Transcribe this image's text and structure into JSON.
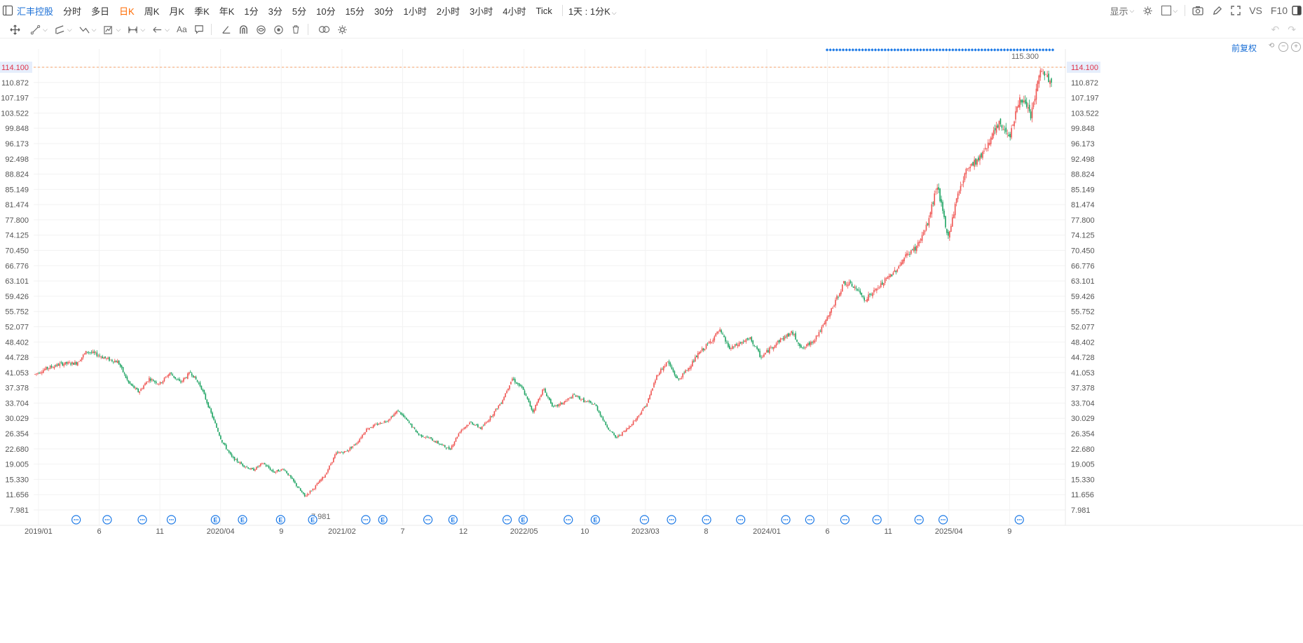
{
  "toolbar": {
    "stock_name": "汇丰控股",
    "periods": [
      "分时",
      "多日",
      "日K",
      "周K",
      "月K",
      "季K",
      "年K",
      "1分",
      "3分",
      "5分",
      "10分",
      "15分",
      "30分",
      "1小时",
      "2小时",
      "3小时",
      "4小时",
      "Tick"
    ],
    "active_period": "日K",
    "interval_select": "1天 : 1分K",
    "display_label": "显示",
    "vs_label": "VS",
    "f10_label": "F10"
  },
  "drawing_tools": [
    "move-tool",
    "line-tool",
    "channel-tool",
    "path-tool",
    "pattern-tool",
    "measure-tool",
    "arrow-tool",
    "text-tool",
    "comment-tool",
    "angle-tool",
    "magnet-tool",
    "hide-tool",
    "eye-tool",
    "delete-tool",
    "link-tool",
    "settings-tool"
  ],
  "price_axis": {
    "labels": [
      "114.100",
      "110.872",
      "107.197",
      "103.522",
      "99.848",
      "96.173",
      "92.498",
      "88.824",
      "85.149",
      "81.474",
      "77.800",
      "74.125",
      "70.450",
      "66.776",
      "63.101",
      "59.426",
      "55.752",
      "52.077",
      "48.402",
      "44.728",
      "41.053",
      "37.378",
      "33.704",
      "30.029",
      "26.354",
      "22.680",
      "19.005",
      "15.330",
      "11.656",
      "7.981"
    ],
    "current_price": "114.100",
    "max_label": "115.300",
    "min_label": "7.981"
  },
  "time_axis": {
    "labels": [
      "2019/01",
      "6",
      "11",
      "2020/04",
      "9",
      "2021/02",
      "7",
      "12",
      "2022/05",
      "10",
      "2023/03",
      "8",
      "2024/01",
      "6",
      "11",
      "2025/04",
      "9"
    ]
  },
  "adjust_label": "前复权",
  "event_markers": [
    {
      "t": 0.027,
      "type": "dividend"
    },
    {
      "t": 0.058,
      "type": "dividend"
    },
    {
      "t": 0.093,
      "type": "dividend"
    },
    {
      "t": 0.122,
      "type": "dividend"
    },
    {
      "t": 0.166,
      "type": "earnings"
    },
    {
      "t": 0.193,
      "type": "earnings"
    },
    {
      "t": 0.231,
      "type": "earnings"
    },
    {
      "t": 0.263,
      "type": "earnings"
    },
    {
      "t": 0.316,
      "type": "dividend"
    },
    {
      "t": 0.333,
      "type": "earnings"
    },
    {
      "t": 0.378,
      "type": "dividend"
    },
    {
      "t": 0.403,
      "type": "earnings"
    },
    {
      "t": 0.457,
      "type": "dividend"
    },
    {
      "t": 0.473,
      "type": "earnings"
    },
    {
      "t": 0.518,
      "type": "dividend"
    },
    {
      "t": 0.545,
      "type": "earnings"
    },
    {
      "t": 0.594,
      "type": "dividend"
    },
    {
      "t": 0.621,
      "type": "dividend"
    },
    {
      "t": 0.656,
      "type": "dividend"
    },
    {
      "t": 0.69,
      "type": "dividend"
    },
    {
      "t": 0.735,
      "type": "dividend"
    },
    {
      "t": 0.759,
      "type": "dividend"
    },
    {
      "t": 0.794,
      "type": "dividend"
    },
    {
      "t": 0.826,
      "type": "dividend"
    },
    {
      "t": 0.868,
      "type": "dividend"
    },
    {
      "t": 0.892,
      "type": "dividend"
    },
    {
      "t": 0.968,
      "type": "dividend"
    }
  ],
  "chart_data": {
    "type": "line",
    "ylim": [
      7.981,
      116.5
    ],
    "x": [
      0.0,
      0.01,
      0.025,
      0.04,
      0.05,
      0.06,
      0.07,
      0.08,
      0.09,
      0.1,
      0.11,
      0.12,
      0.13,
      0.14,
      0.15,
      0.16,
      0.17,
      0.18,
      0.19,
      0.2,
      0.21,
      0.22,
      0.23,
      0.24,
      0.25,
      0.26,
      0.27,
      0.28,
      0.29,
      0.3,
      0.31,
      0.32,
      0.33,
      0.34,
      0.35,
      0.36,
      0.37,
      0.38,
      0.39,
      0.4,
      0.41,
      0.42,
      0.43,
      0.44,
      0.45,
      0.46,
      0.47,
      0.48,
      0.49,
      0.5,
      0.51,
      0.52,
      0.53,
      0.54,
      0.55,
      0.56,
      0.57,
      0.58,
      0.59,
      0.6,
      0.61,
      0.62,
      0.63,
      0.64,
      0.65,
      0.66,
      0.67,
      0.68,
      0.69,
      0.7,
      0.71,
      0.72,
      0.73,
      0.74,
      0.75,
      0.76,
      0.77,
      0.78,
      0.79,
      0.8,
      0.81,
      0.82,
      0.83,
      0.84,
      0.85,
      0.86,
      0.87,
      0.88,
      0.89,
      0.9,
      0.91,
      0.92,
      0.93,
      0.94,
      0.95,
      0.96,
      0.97,
      0.98
    ],
    "close": [
      40.5,
      41.8,
      43.0,
      43.2,
      46.0,
      45.2,
      44.1,
      43.5,
      38.5,
      36.2,
      39.5,
      38.2,
      40.8,
      38.5,
      41.0,
      37.5,
      31.0,
      24.5,
      20.5,
      18.8,
      17.5,
      19.2,
      17.0,
      17.8,
      14.5,
      11.2,
      13.5,
      16.5,
      21.5,
      22.0,
      24.0,
      27.5,
      28.5,
      29.5,
      31.8,
      29.0,
      26.0,
      25.2,
      23.8,
      22.5,
      27.0,
      29.0,
      27.5,
      30.5,
      34.0,
      39.5,
      37.0,
      31.5,
      37.0,
      32.5,
      33.8,
      35.5,
      34.0,
      33.2,
      28.5,
      25.2,
      27.2,
      30.0,
      33.5,
      40.5,
      43.5,
      39.0,
      42.0,
      45.5,
      48.0,
      51.0,
      46.5,
      48.0,
      49.0,
      44.5,
      47.0,
      49.0,
      50.5,
      46.5,
      48.5,
      52.0,
      57.0,
      62.5,
      61.5,
      58.5,
      60.5,
      63.0,
      65.5,
      69.0,
      71.0,
      76.0,
      86.0,
      73.0,
      84.0,
      90.5,
      92.0,
      96.5,
      100.5,
      98.0,
      107.0,
      102.5,
      113.5,
      110.0
    ]
  }
}
